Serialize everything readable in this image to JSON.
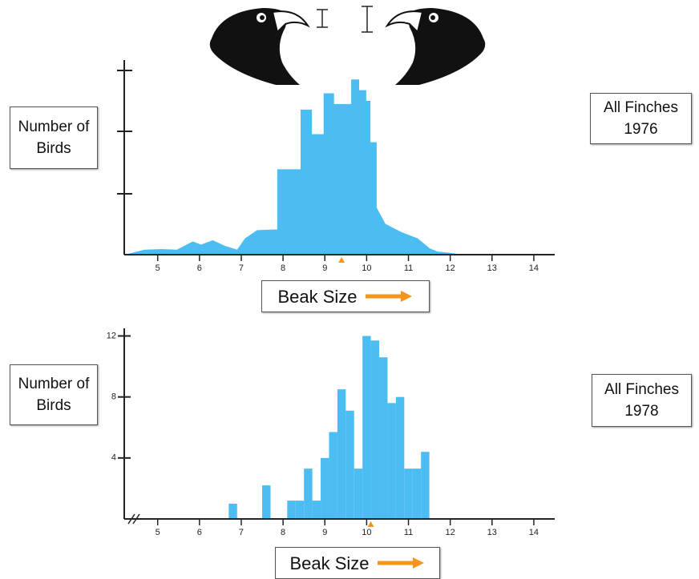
{
  "chart_data": [
    {
      "type": "area",
      "title": "All Finches 1976",
      "y_label": "Number of Birds",
      "x_label": "Beak Size",
      "color": "#4bbdf2",
      "mean_color": "#f7941d",
      "x": [
        4.21,
        4.69,
        5.08,
        5.46,
        5.84,
        6.04,
        6.32,
        6.61,
        6.9,
        7.09,
        7.38,
        7.76,
        7.86,
        7.86,
        8.42,
        8.42,
        8.69,
        8.69,
        8.97,
        8.97,
        9.22,
        9.22,
        9.63,
        9.63,
        9.82,
        9.82,
        9.99,
        9.99,
        10.09,
        10.09,
        10.24,
        10.24,
        10.45,
        10.83,
        11.22,
        11.51,
        11.7,
        11.99,
        12.27
      ],
      "values": [
        0,
        0.08,
        0.09,
        0.08,
        0.21,
        0.16,
        0.23,
        0.14,
        0.08,
        0.26,
        0.39,
        0.4,
        0.4,
        1.36,
        1.36,
        2.31,
        2.31,
        1.92,
        1.92,
        2.57,
        2.57,
        2.4,
        2.4,
        2.79,
        2.79,
        2.62,
        2.62,
        2.45,
        2.45,
        1.79,
        1.79,
        0.75,
        0.49,
        0.36,
        0.26,
        0.1,
        0.05,
        0.03,
        0
      ],
      "mean": 9.4,
      "xlim": [
        4.2,
        14.5
      ],
      "xticks": [
        5,
        6,
        7,
        8,
        9,
        10,
        11,
        12,
        13,
        14
      ],
      "ylim": [
        0,
        3.1
      ]
    },
    {
      "type": "histogram",
      "title": "All Finches 1978",
      "y_label": "Number of Birds",
      "x_label": "Beak Size",
      "color": "#4bbdf2",
      "mean_color": "#f7941d",
      "bins": [
        6.7,
        6.9,
        7.1,
        7.3,
        7.5,
        7.7,
        7.9,
        8.1,
        8.3,
        8.5,
        8.7,
        8.9,
        9.1,
        9.3,
        9.5,
        9.7,
        9.9,
        10.1,
        10.3,
        10.5,
        10.7,
        10.9,
        11.1,
        11.3,
        11.5
      ],
      "values": [
        1,
        0,
        0,
        0,
        2.2,
        0,
        0,
        1.2,
        1.2,
        3.3,
        1.2,
        4,
        5.7,
        8.5,
        7.1,
        3.3,
        12,
        11.7,
        10.6,
        7.6,
        8,
        3.3,
        3.3,
        4.4
      ],
      "mean": 10.1,
      "xlim": [
        4.2,
        14.5
      ],
      "xticks": [
        5,
        6,
        7,
        8,
        9,
        10,
        11,
        12,
        13,
        14
      ],
      "ylim": [
        0,
        12.5
      ],
      "yticks": [
        4,
        8,
        12
      ]
    }
  ]
}
